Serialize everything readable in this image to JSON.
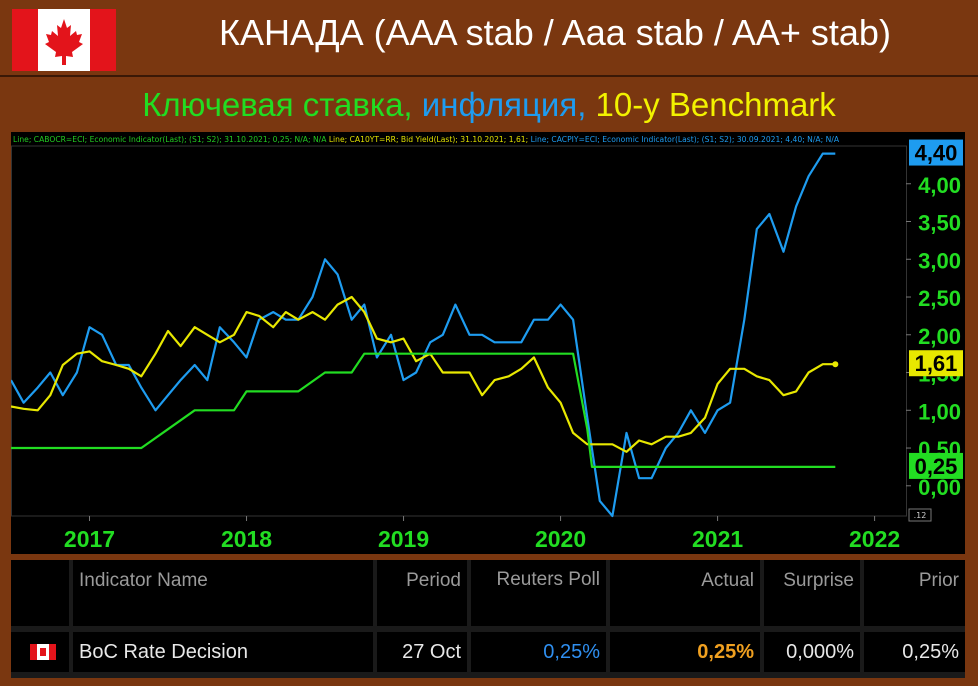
{
  "header": {
    "title": "КАНАДА (AAA stab / Aaa stab / AA+ stab)",
    "subtitle_parts": [
      {
        "text": "Ключевая ставка, ",
        "color": "#22dd22"
      },
      {
        "text": "инфляция, ",
        "color": "#1e9cf0"
      },
      {
        "text": "10-у Benchmark",
        "color": "#f2f200"
      }
    ]
  },
  "chart_data": {
    "type": "line",
    "legend_line": [
      {
        "text": "Line; CABOCR=ECI; Economic Indicator(Last); (S1; S2); 31.10.2021; 0,25; N/A; N/A",
        "color": "#22cc22"
      },
      {
        "text": "Line; CA10YT=RR; Bid Yield(Last); 31.10.2021; 1,61;",
        "color": "#e0e000"
      },
      {
        "text": "Line; CACPIY=ECI; Economic Indicator(Last); (S1; S2); 30.09.2021; 4,40; N/A; N/A",
        "color": "#1e9cf0"
      }
    ],
    "x_ticks": [
      "2017",
      "2018",
      "2019",
      "2020",
      "2021",
      "2022"
    ],
    "y_ticks": [
      "4,00",
      "3,50",
      "3,00",
      "2,50",
      "2,00",
      "1,50",
      "1,00",
      "0,50",
      "0,00"
    ],
    "ylim": [
      -0.4,
      4.5
    ],
    "xlim": [
      2016.5,
      2022.2
    ],
    "small_box_label": ".12",
    "series": [
      {
        "name": "CACPIY",
        "color": "#1e9cf0",
        "last_label": "4,40",
        "x": [
          2016.5,
          2016.58,
          2016.67,
          2016.75,
          2016.83,
          2016.92,
          2017.0,
          2017.08,
          2017.17,
          2017.25,
          2017.33,
          2017.42,
          2017.5,
          2017.58,
          2017.67,
          2017.75,
          2017.83,
          2017.92,
          2018.0,
          2018.08,
          2018.17,
          2018.25,
          2018.33,
          2018.42,
          2018.5,
          2018.58,
          2018.67,
          2018.75,
          2018.83,
          2018.92,
          2019.0,
          2019.08,
          2019.17,
          2019.25,
          2019.33,
          2019.42,
          2019.5,
          2019.58,
          2019.67,
          2019.75,
          2019.83,
          2019.92,
          2020.0,
          2020.08,
          2020.17,
          2020.25,
          2020.33,
          2020.42,
          2020.5,
          2020.58,
          2020.67,
          2020.75,
          2020.83,
          2020.92,
          2021.0,
          2021.08,
          2021.17,
          2021.25,
          2021.33,
          2021.42,
          2021.5,
          2021.58,
          2021.67,
          2021.75
        ],
        "values": [
          1.4,
          1.1,
          1.3,
          1.5,
          1.2,
          1.5,
          2.1,
          2.0,
          1.6,
          1.6,
          1.3,
          1.0,
          1.2,
          1.4,
          1.6,
          1.4,
          2.1,
          1.9,
          1.7,
          2.2,
          2.3,
          2.2,
          2.2,
          2.5,
          3.0,
          2.8,
          2.2,
          2.4,
          1.7,
          2.0,
          1.4,
          1.5,
          1.9,
          2.0,
          2.4,
          2.0,
          2.0,
          1.9,
          1.9,
          1.9,
          2.2,
          2.2,
          2.4,
          2.2,
          0.9,
          -0.2,
          -0.4,
          0.7,
          0.1,
          0.1,
          0.5,
          0.7,
          1.0,
          0.7,
          1.0,
          1.1,
          2.2,
          3.4,
          3.6,
          3.1,
          3.7,
          4.1,
          4.4,
          4.4
        ]
      },
      {
        "name": "CA10YT",
        "color": "#e8e800",
        "last_label": "1,61",
        "x": [
          2016.5,
          2016.58,
          2016.67,
          2016.75,
          2016.83,
          2016.92,
          2017.0,
          2017.08,
          2017.17,
          2017.25,
          2017.33,
          2017.42,
          2017.5,
          2017.58,
          2017.67,
          2017.75,
          2017.83,
          2017.92,
          2018.0,
          2018.08,
          2018.17,
          2018.25,
          2018.33,
          2018.42,
          2018.5,
          2018.58,
          2018.67,
          2018.75,
          2018.83,
          2018.92,
          2019.0,
          2019.08,
          2019.17,
          2019.25,
          2019.33,
          2019.42,
          2019.5,
          2019.58,
          2019.67,
          2019.75,
          2019.83,
          2019.92,
          2020.0,
          2020.08,
          2020.17,
          2020.25,
          2020.33,
          2020.42,
          2020.5,
          2020.58,
          2020.67,
          2020.75,
          2020.83,
          2020.92,
          2021.0,
          2021.08,
          2021.17,
          2021.25,
          2021.33,
          2021.42,
          2021.5,
          2021.58,
          2021.67,
          2021.75
        ],
        "values": [
          1.05,
          1.02,
          1.0,
          1.2,
          1.6,
          1.75,
          1.78,
          1.65,
          1.6,
          1.55,
          1.45,
          1.75,
          2.05,
          1.85,
          2.1,
          2.0,
          1.9,
          2.0,
          2.3,
          2.25,
          2.1,
          2.3,
          2.2,
          2.3,
          2.2,
          2.4,
          2.5,
          2.3,
          1.95,
          1.9,
          1.95,
          1.65,
          1.75,
          1.5,
          1.5,
          1.5,
          1.2,
          1.4,
          1.45,
          1.55,
          1.7,
          1.3,
          1.1,
          0.7,
          0.55,
          0.55,
          0.55,
          0.45,
          0.6,
          0.55,
          0.65,
          0.65,
          0.7,
          0.9,
          1.35,
          1.55,
          1.55,
          1.45,
          1.4,
          1.2,
          1.25,
          1.5,
          1.61,
          1.61
        ]
      },
      {
        "name": "CABOCR",
        "color": "#22dd22",
        "last_label": "0,25",
        "x": [
          2016.5,
          2017.33,
          2017.5,
          2017.67,
          2017.92,
          2018.0,
          2018.33,
          2018.5,
          2018.67,
          2018.75,
          2019.0,
          2020.08,
          2020.17,
          2020.2,
          2020.5,
          2021.0,
          2021.5,
          2021.75
        ],
        "values": [
          0.5,
          0.5,
          0.75,
          1.0,
          1.0,
          1.25,
          1.25,
          1.5,
          1.5,
          1.75,
          1.75,
          1.75,
          0.75,
          0.25,
          0.25,
          0.25,
          0.25,
          0.25
        ]
      }
    ]
  },
  "table": {
    "headers": [
      "Indicator Name",
      "Period",
      "Reuters Poll",
      "Actual",
      "Surprise",
      "Prior"
    ],
    "row": {
      "indicator": "BoC Rate Decision",
      "period": "27 Oct",
      "reuters_poll": "0,25%",
      "actual": "0,25%",
      "surprise": "0,000%",
      "prior": "0,25%"
    },
    "colors": {
      "poll": "#2f8ff0",
      "actual": "#f0a020"
    }
  }
}
